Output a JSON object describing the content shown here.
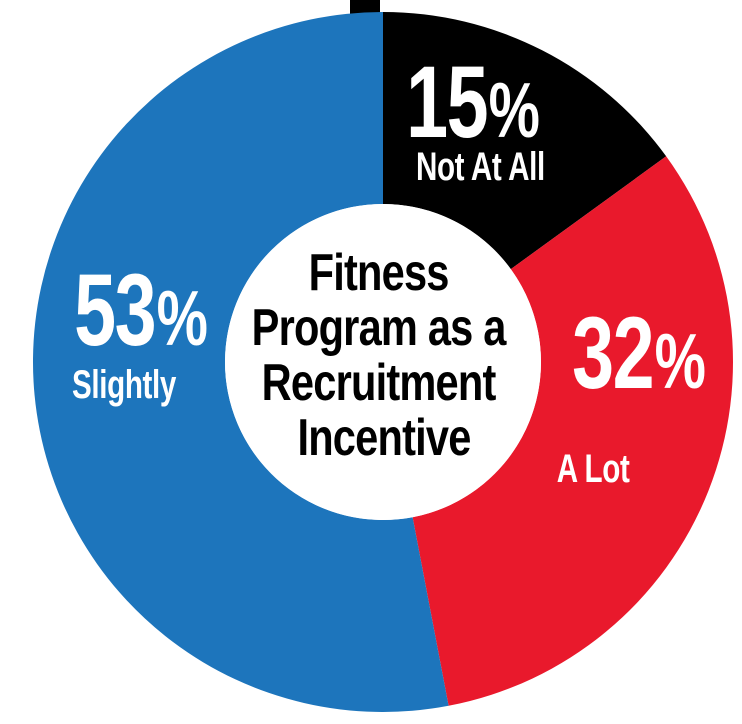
{
  "background_color": "#FFFFFF",
  "chart_data": {
    "type": "pie",
    "subtype": "donut",
    "title": "Fitness Program as a Recruitment Incentive",
    "center_title_lines": [
      "Fitness",
      "Program as a",
      "Recruitment",
      "Incentive"
    ],
    "center_text_color": "#000000",
    "hole_color": "#FFFFFF",
    "percent_symbol": "%",
    "legend_position": "none",
    "grid": false,
    "start_angle_deg": 0,
    "direction": "clockwise from 12 o'clock",
    "segments": [
      {
        "label": "Not At All",
        "value": 15,
        "value_str": "15",
        "color": "#000000",
        "text_color": "#FFFFFF"
      },
      {
        "label": "A Lot",
        "value": 32,
        "value_str": "32",
        "color": "#E9192C",
        "text_color": "#FFFFFF"
      },
      {
        "label": "Slightly",
        "value": 53,
        "value_str": "53",
        "color": "#1D75BC",
        "text_color": "#FFFFFF"
      }
    ]
  }
}
